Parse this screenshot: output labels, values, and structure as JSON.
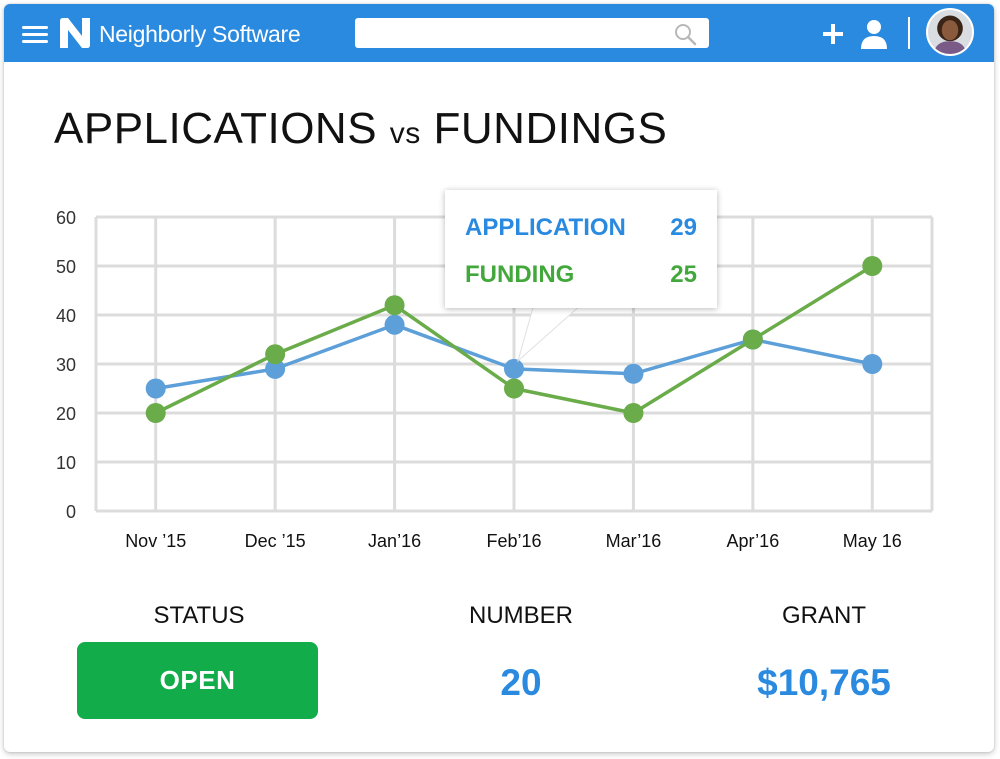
{
  "header": {
    "brand": "Neighborly Software",
    "search_placeholder": ""
  },
  "page": {
    "title_part1": "APPLICATIONS",
    "title_part2": "vs",
    "title_part3": "FUNDINGS"
  },
  "colors": {
    "accent": "#2a8ae0",
    "application": "#5d9fd8",
    "funding": "#6aab4a",
    "open": "#12ac4a"
  },
  "tooltip": {
    "application_label": "APPLICATION",
    "application_value": "29",
    "funding_label": "FUNDING",
    "funding_value": "25"
  },
  "chart_data": {
    "type": "line",
    "categories": [
      "Nov ’15",
      "Dec ’15",
      "Jan’16",
      "Feb’16",
      "Mar’16",
      "Apr’16",
      "May 16"
    ],
    "series": [
      {
        "name": "APPLICATION",
        "values": [
          25,
          29,
          38,
          29,
          28,
          35,
          30
        ]
      },
      {
        "name": "FUNDING",
        "values": [
          20,
          32,
          42,
          25,
          20,
          35,
          50
        ]
      }
    ],
    "ylim": [
      0,
      60
    ],
    "yticks": [
      "0",
      "10",
      "20",
      "30",
      "40",
      "50",
      "60"
    ],
    "grid": true,
    "legend": "none",
    "highlight_category": "Feb’16"
  },
  "stats": {
    "status_label": "STATUS",
    "status_value": "OPEN",
    "number_label": "NUMBER",
    "number_value": "20",
    "grant_label": "GRANT",
    "grant_value": "$10,765"
  },
  "icons": {
    "menu": "menu-icon",
    "logo": "neighborly-logo-icon",
    "search": "search-icon",
    "add": "plus-icon",
    "user": "user-icon"
  }
}
